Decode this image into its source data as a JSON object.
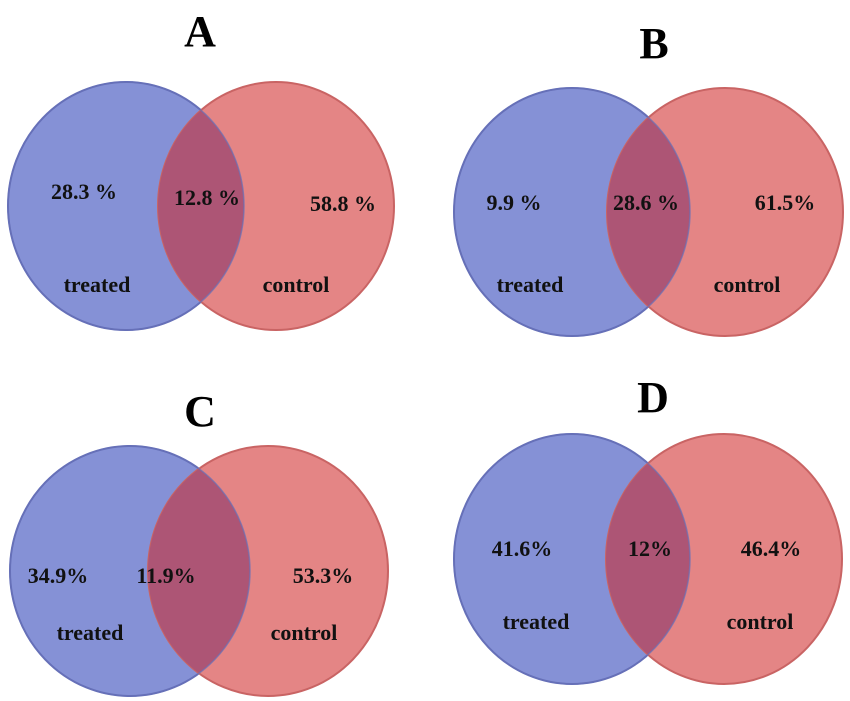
{
  "colors": {
    "treated_fill": "#8591d6",
    "treated_stroke": "#6670b8",
    "control_fill": "#e48585",
    "control_stroke": "#c96464",
    "overlap_fill": "#ad5575",
    "text": "#111111"
  },
  "panels": [
    {
      "title": "A",
      "treated_only": "28.3 %",
      "overlap": "12.8 %",
      "control_only": "58.8 %",
      "treated_label": "treated",
      "control_label": "control"
    },
    {
      "title": "B",
      "treated_only": "9.9 %",
      "overlap": "28.6 %",
      "control_only": "61.5%",
      "treated_label": "treated",
      "control_label": "control"
    },
    {
      "title": "C",
      "treated_only": "34.9%",
      "overlap": "11.9%",
      "control_only": "53.3%",
      "treated_label": "treated",
      "control_label": "control"
    },
    {
      "title": "D",
      "treated_only": "41.6%",
      "overlap": "12%",
      "control_only": "46.4%",
      "treated_label": "treated",
      "control_label": "control"
    }
  ]
}
